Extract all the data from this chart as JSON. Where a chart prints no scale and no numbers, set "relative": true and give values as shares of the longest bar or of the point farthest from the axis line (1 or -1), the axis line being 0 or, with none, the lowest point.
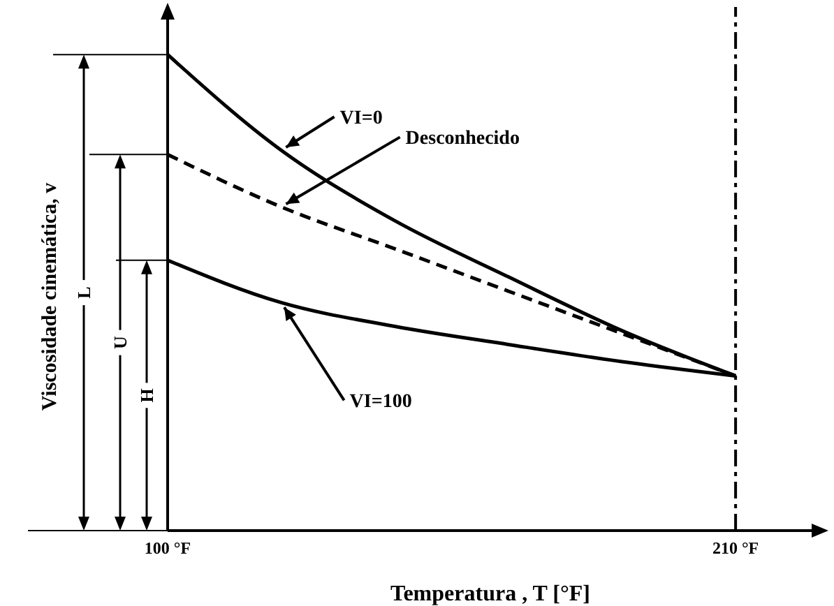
{
  "chart_data": {
    "type": "line",
    "relative": true,
    "xlabel": "Temperatura , T [°F]",
    "ylabel": "Viscosidade cinemática, v",
    "xlim": [
      100,
      225
    ],
    "xticks": [
      {
        "value": 100,
        "label": "100 °F"
      },
      {
        "value": 210,
        "label": "210 °F"
      }
    ],
    "x": [
      100,
      122,
      144,
      166,
      188,
      210
    ],
    "series": [
      {
        "name": "VI=0",
        "color": "#000000",
        "line_style": "solid",
        "values": [
          1,
          0.799,
          0.651,
          0.533,
          0.42,
          0.325
        ]
      },
      {
        "name": "Desconhecido",
        "color": "#000000",
        "line_style": "dashed",
        "values": [
          0.79,
          0.68,
          0.592,
          0.503,
          0.414,
          0.325
        ]
      },
      {
        "name": "VI=100",
        "color": "#000000",
        "line_style": "solid",
        "values": [
          0.568,
          0.479,
          0.429,
          0.391,
          0.355,
          0.325
        ]
      }
    ],
    "ref_lines": [
      {
        "axis": "x",
        "value": 210,
        "color": "#000000",
        "line_style": "dashed"
      }
    ],
    "annotations": [
      "L",
      "U",
      "H"
    ]
  }
}
